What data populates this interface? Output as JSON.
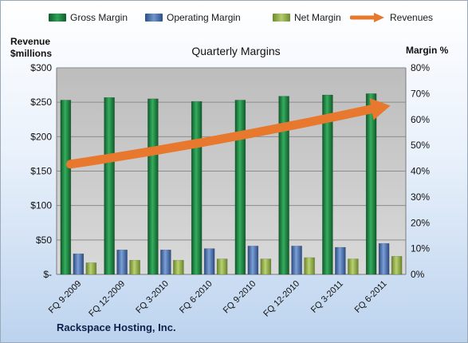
{
  "legend": {
    "gross": "Gross Margin",
    "operating": "Operating Margin",
    "net": "Net Margin",
    "revenues": "Revenues"
  },
  "axes": {
    "left_label_line1": "Revenue",
    "left_label_line2": "$millions",
    "right_label": "Margin %"
  },
  "footer": "Rackspace Hosting, Inc.",
  "colors": {
    "gross": "#1e7a3c",
    "operating": "#4a6fa8",
    "net": "#8fad4a",
    "revenues": "#e8782d",
    "plot_bg": "#c8c8c8"
  },
  "chart_data": {
    "type": "bar",
    "title": "Quarterly Margins",
    "categories": [
      "FQ 9-2009",
      "FQ 12-2009",
      "FQ 3-2010",
      "FQ 6-2010",
      "FQ 9-2010",
      "FQ 12-2010",
      "FQ 3-2011",
      "FQ 6-2011"
    ],
    "series": [
      {
        "name": "Gross Margin",
        "axis": "right",
        "values": [
          67.5,
          68.5,
          68,
          67,
          67.5,
          69,
          69.5,
          70
        ]
      },
      {
        "name": "Operating Margin",
        "axis": "right",
        "values": [
          8,
          9.5,
          9.5,
          10,
          11,
          11,
          10.5,
          12
        ]
      },
      {
        "name": "Net Margin",
        "axis": "right",
        "values": [
          4.5,
          5.5,
          5.5,
          6,
          6,
          6.5,
          6,
          7
        ]
      },
      {
        "name": "Revenues",
        "axis": "left",
        "style": "trend-arrow",
        "start": 160,
        "end": 245
      }
    ],
    "left_axis": {
      "ticks": [
        "$-",
        "$50",
        "$100",
        "$150",
        "$200",
        "$250",
        "$300"
      ],
      "ylim": [
        0,
        300
      ]
    },
    "right_axis": {
      "ticks": [
        "0%",
        "10%",
        "20%",
        "30%",
        "40%",
        "50%",
        "60%",
        "70%",
        "80%"
      ],
      "ylim": [
        0,
        80
      ]
    },
    "grid": true,
    "legend_position": "top"
  }
}
